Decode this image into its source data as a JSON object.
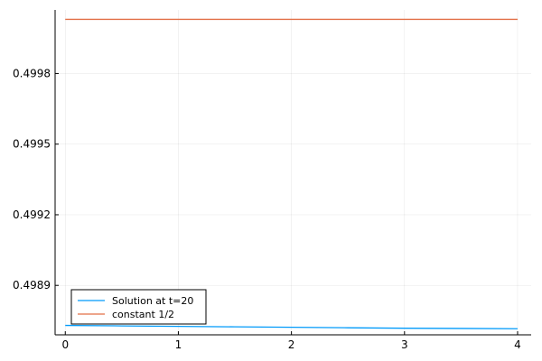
{
  "chart_data": {
    "type": "line",
    "title": "",
    "xlabel": "",
    "ylabel": "",
    "xlim": [
      -0.09,
      4.12
    ],
    "ylim": [
      0.49866,
      0.50004
    ],
    "x_ticks": [
      0,
      1,
      2,
      3,
      4
    ],
    "x_tick_labels": [
      "0",
      "1",
      "2",
      "3",
      "4"
    ],
    "y_ticks": [
      0.49887,
      0.49917,
      0.49947,
      0.49977
    ],
    "y_tick_labels": [
      "0.4989",
      "0.4992",
      "0.4995",
      "0.4998"
    ],
    "grid": true,
    "legend_position": "bottom-left",
    "series": [
      {
        "name": "Solution at t=20",
        "color": "#009AFA",
        "x": [
          0,
          0.5,
          1,
          1.5,
          2,
          2.5,
          3,
          3.5,
          4
        ],
        "y": [
          0.4987,
          0.498698,
          0.498696,
          0.498694,
          0.498692,
          0.49869,
          0.498688,
          0.498687,
          0.498686
        ]
      },
      {
        "name": "constant 1/2",
        "color": "#E26F46",
        "x": [
          0,
          4
        ],
        "y": [
          0.5,
          0.5
        ]
      }
    ]
  }
}
